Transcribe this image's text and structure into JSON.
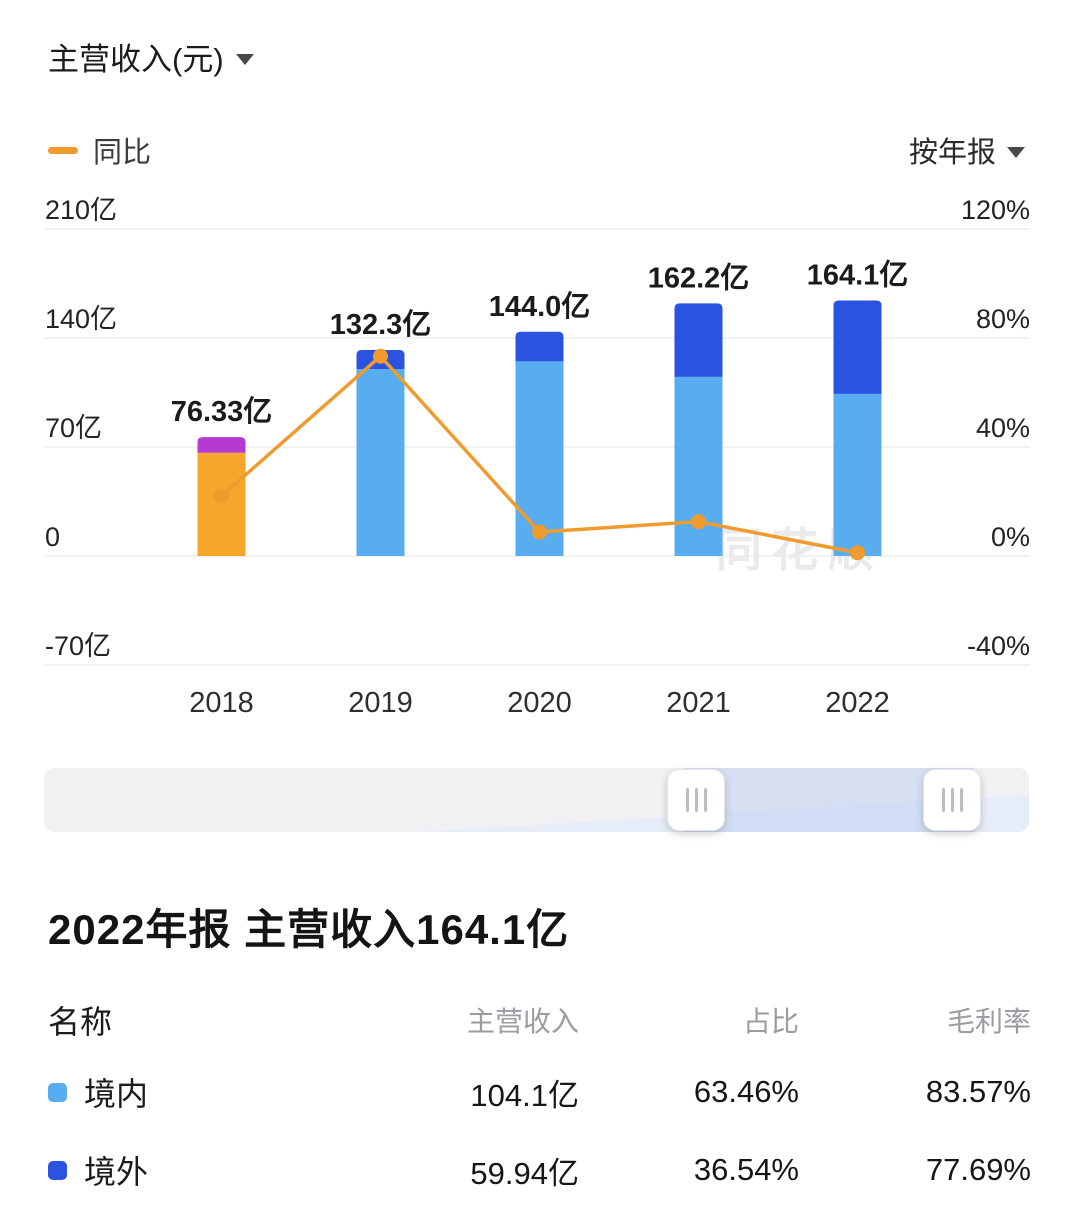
{
  "header": {
    "title": "主营收入(元)",
    "legend_yoy": "同比",
    "period_selector": "按年报"
  },
  "chart_data": {
    "type": "bar",
    "title": "主营收入(元)",
    "categories": [
      "2018",
      "2019",
      "2020",
      "2021",
      "2022"
    ],
    "bar_total_labels": [
      "76.33亿",
      "132.3亿",
      "144.0亿",
      "162.2亿",
      "164.1亿"
    ],
    "bar_totals": [
      76.33,
      132.3,
      144.0,
      162.2,
      164.1
    ],
    "series": [
      {
        "name": "segment-bottom",
        "values": [
          66.33,
          120.0,
          125.0,
          115.0,
          104.1
        ],
        "colors": [
          "#f6a62a",
          "#58adf0",
          "#58adf0",
          "#58adf0",
          "#58adf0"
        ]
      },
      {
        "name": "segment-top",
        "values": [
          10.0,
          12.3,
          19.0,
          47.2,
          60.0
        ],
        "colors": [
          "#b43ad2",
          "#2a53e2",
          "#2a53e2",
          "#2a53e2",
          "#2a53e2"
        ]
      }
    ],
    "line_series": {
      "name": "同比",
      "unit": "%",
      "color": "#ef9b2d",
      "values": [
        22.0,
        73.3,
        8.8,
        12.6,
        1.2
      ]
    },
    "left_axis": {
      "ticks": [
        "210亿",
        "140亿",
        "70亿",
        "0",
        "-70亿"
      ],
      "values": [
        210,
        140,
        70,
        0,
        -70
      ]
    },
    "right_axis": {
      "ticks": [
        "120%",
        "80%",
        "40%",
        "0%",
        "-40%"
      ],
      "values": [
        120,
        80,
        40,
        0,
        -40
      ]
    },
    "grid": true,
    "legend_position": "top-left",
    "watermark": "同花顺"
  },
  "summary": {
    "title": "2022年报 主营收入164.1亿"
  },
  "breakdown": {
    "headers": [
      "名称",
      "主营收入",
      "占比",
      "毛利率"
    ],
    "rows": [
      {
        "name": "境内",
        "swatch_color": "#58adf0",
        "revenue": "104.1亿",
        "share": "63.46%",
        "margin": "83.57%"
      },
      {
        "name": "境外",
        "swatch_color": "#2a53e2",
        "revenue": "59.94亿",
        "share": "36.54%",
        "margin": "77.69%"
      }
    ]
  },
  "colors": {
    "domestic_bar": "#58adf0",
    "overseas_bar": "#2a53e2",
    "bar_2018_main": "#f6a62a",
    "bar_2018_cap": "#b43ad2",
    "yoy_line": "#ef9b2d",
    "grid_line": "#ededee"
  }
}
